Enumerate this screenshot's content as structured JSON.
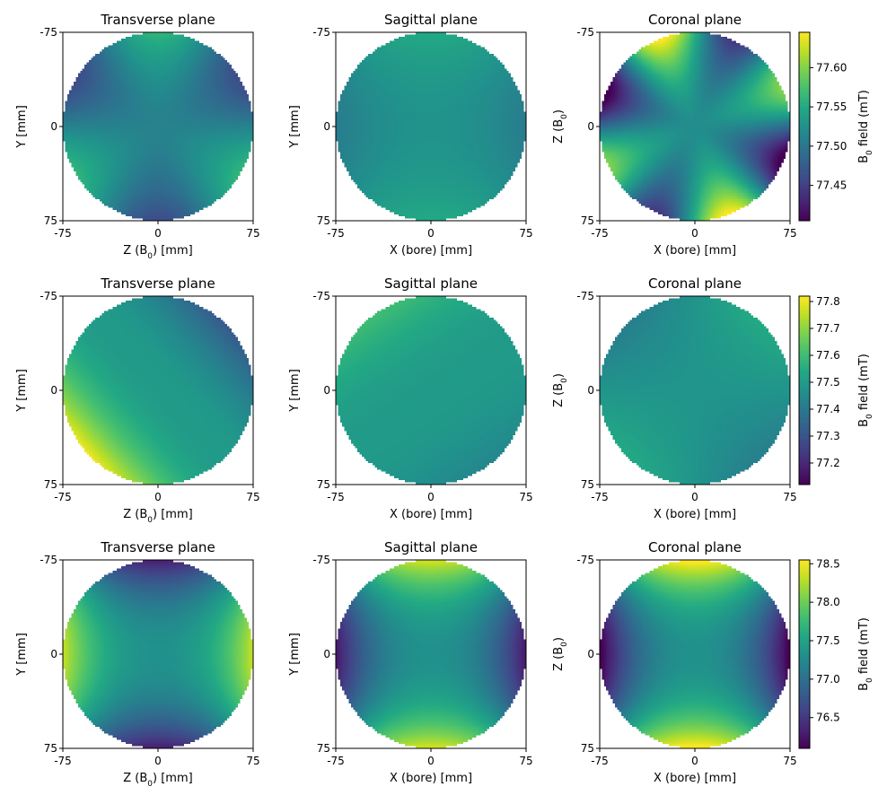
{
  "colormap": "viridis",
  "chart_data": [
    {
      "type": "heatmap",
      "row": 0,
      "col": 0,
      "title": "Transverse plane",
      "xlabel": "Z (B0) [mm]",
      "ylabel": "Y [mm]",
      "xticks": [
        "-75",
        "0",
        "75"
      ],
      "yticks": [
        "-75",
        "0",
        "75"
      ],
      "xlim": [
        -75,
        75
      ],
      "ylim": [
        75,
        -75
      ],
      "mask": "circle",
      "radius": 75,
      "field": {
        "kind": "angular",
        "base": 77.5,
        "cos1": 0.0,
        "sin1": 0.0,
        "cos2": 0.0,
        "sin2": 0.0,
        "cos3": 0.0,
        "sin3": 0.045
      }
    },
    {
      "type": "heatmap",
      "row": 0,
      "col": 1,
      "title": "Sagittal plane",
      "xlabel": "X (bore) [mm]",
      "ylabel": "Y [mm]",
      "xticks": [
        "-75",
        "0",
        "75"
      ],
      "yticks": [
        "-75",
        "0",
        "75"
      ],
      "xlim": [
        -75,
        75
      ],
      "ylim": [
        75,
        -75
      ],
      "mask": "circle",
      "radius": 75,
      "field": {
        "kind": "angular",
        "base": 77.515,
        "cos1": 0.0,
        "sin1": 0.0,
        "cos2": -0.02,
        "sin2": 0.0,
        "cos3": 0.0,
        "sin3": 0.0
      }
    },
    {
      "type": "heatmap",
      "row": 0,
      "col": 2,
      "title": "Coronal plane",
      "xlabel": "X (bore) [mm]",
      "ylabel": "Z (B0)",
      "xticks": [
        "-75",
        "0",
        "75"
      ],
      "yticks": [
        "-75",
        "0",
        "75"
      ],
      "xlim": [
        -75,
        75
      ],
      "ylim": [
        75,
        -75
      ],
      "mask": "circle",
      "radius": 75,
      "field": {
        "kind": "angular",
        "base": 77.51,
        "cos1": 0.0,
        "sin1": 0.0,
        "cos2": -0.03,
        "sin2": 0.0,
        "cos3": 0.0,
        "sin3": 0.0,
        "cos4": 0.0,
        "sin4": -0.09
      }
    },
    {
      "type": "heatmap",
      "row": 1,
      "col": 0,
      "title": "Transverse plane",
      "xlabel": "Z (B0) [mm]",
      "ylabel": "Y [mm]",
      "xticks": [
        "-75",
        "0",
        "75"
      ],
      "yticks": [
        "-75",
        "0",
        "75"
      ],
      "xlim": [
        -75,
        75
      ],
      "ylim": [
        75,
        -75
      ],
      "mask": "circle",
      "radius": 75,
      "field": {
        "kind": "angular",
        "base": 77.5,
        "cos1": 0.0,
        "sin1": 0.0,
        "cos2": 0.0,
        "sin2": 0.0,
        "cos3": 0.0,
        "sin3": 0.0,
        "cos4": 0.0,
        "sin4": 0.0,
        "pow": 1.8,
        "vec": [
          -0.75,
          0.66
        ],
        "amp": 0.3
      }
    },
    {
      "type": "heatmap",
      "row": 1,
      "col": 1,
      "title": "Sagittal plane",
      "xlabel": "X (bore) [mm]",
      "ylabel": "Y [mm]",
      "xticks": [
        "-75",
        "0",
        "75"
      ],
      "yticks": [
        "-75",
        "0",
        "75"
      ],
      "xlim": [
        -75,
        75
      ],
      "ylim": [
        75,
        -75
      ],
      "mask": "circle",
      "radius": 75,
      "field": {
        "kind": "angular",
        "base": 77.5,
        "cos1": 0.0,
        "sin1": 0.0,
        "cos2": 0.0,
        "sin2": 0.0,
        "cos3": 0.0,
        "sin3": 0.0,
        "pow": 2.0,
        "vec": [
          -0.55,
          -0.83
        ],
        "amp": 0.1
      }
    },
    {
      "type": "heatmap",
      "row": 1,
      "col": 2,
      "title": "Coronal plane",
      "xlabel": "X (bore) [mm]",
      "ylabel": "Z (B0)",
      "xticks": [
        "-75",
        "0",
        "75"
      ],
      "yticks": [
        "-75",
        "0",
        "75"
      ],
      "xlim": [
        -75,
        75
      ],
      "ylim": [
        75,
        -75
      ],
      "mask": "circle",
      "radius": 75,
      "field": {
        "kind": "angular",
        "base": 77.48,
        "cos1": 0.0,
        "sin1": 0.0,
        "cos2": 0.0,
        "sin2": -0.06,
        "cos3": 0.0,
        "sin3": 0.0
      }
    },
    {
      "type": "heatmap",
      "row": 2,
      "col": 0,
      "title": "Transverse plane",
      "xlabel": "Z (B0) [mm]",
      "ylabel": "Y [mm]",
      "xticks": [
        "-75",
        "0",
        "75"
      ],
      "yticks": [
        "-75",
        "0",
        "75"
      ],
      "xlim": [
        -75,
        75
      ],
      "ylim": [
        75,
        -75
      ],
      "mask": "circle",
      "radius": 75,
      "field": {
        "kind": "radial",
        "base": 77.3,
        "c2": 1.0,
        "p": 2.3
      }
    },
    {
      "type": "heatmap",
      "row": 2,
      "col": 1,
      "title": "Sagittal plane",
      "xlabel": "X (bore) [mm]",
      "ylabel": "Y [mm]",
      "xticks": [
        "-75",
        "0",
        "75"
      ],
      "yticks": [
        "-75",
        "0",
        "75"
      ],
      "xlim": [
        -75,
        75
      ],
      "ylim": [
        75,
        -75
      ],
      "mask": "circle",
      "radius": 75,
      "field": {
        "kind": "radial",
        "base": 77.3,
        "c2": -1.05,
        "p": 2.3
      }
    },
    {
      "type": "heatmap",
      "row": 2,
      "col": 2,
      "title": "Coronal plane",
      "xlabel": "X (bore) [mm]",
      "ylabel": "Z (B0)",
      "xticks": [
        "-75",
        "0",
        "75"
      ],
      "yticks": [
        "-75",
        "0",
        "75"
      ],
      "xlim": [
        -75,
        75
      ],
      "ylim": [
        75,
        -75
      ],
      "mask": "circle",
      "radius": 75,
      "field": {
        "kind": "radial",
        "base": 77.3,
        "c2": -1.25,
        "p": 2.3
      }
    }
  ],
  "colorbars": [
    {
      "row": 0,
      "label": "B0 field (mT)",
      "min": 77.405,
      "max": 77.645,
      "ticks": [
        77.45,
        77.5,
        77.55,
        77.6
      ],
      "tick_labels": [
        "77.45",
        "77.50",
        "77.55",
        "77.60"
      ]
    },
    {
      "row": 1,
      "label": "B0 field (mT)",
      "min": 77.12,
      "max": 77.82,
      "ticks": [
        77.2,
        77.3,
        77.4,
        77.5,
        77.6,
        77.7,
        77.8
      ],
      "tick_labels": [
        "77.2",
        "77.3",
        "77.4",
        "77.5",
        "77.6",
        "77.7",
        "77.8"
      ]
    },
    {
      "row": 2,
      "label": "B0 field (mT)",
      "min": 76.1,
      "max": 78.55,
      "ticks": [
        76.5,
        77.0,
        77.5,
        78.0,
        78.5
      ],
      "tick_labels": [
        "76.5",
        "77.0",
        "77.5",
        "78.0",
        "78.5"
      ]
    }
  ]
}
